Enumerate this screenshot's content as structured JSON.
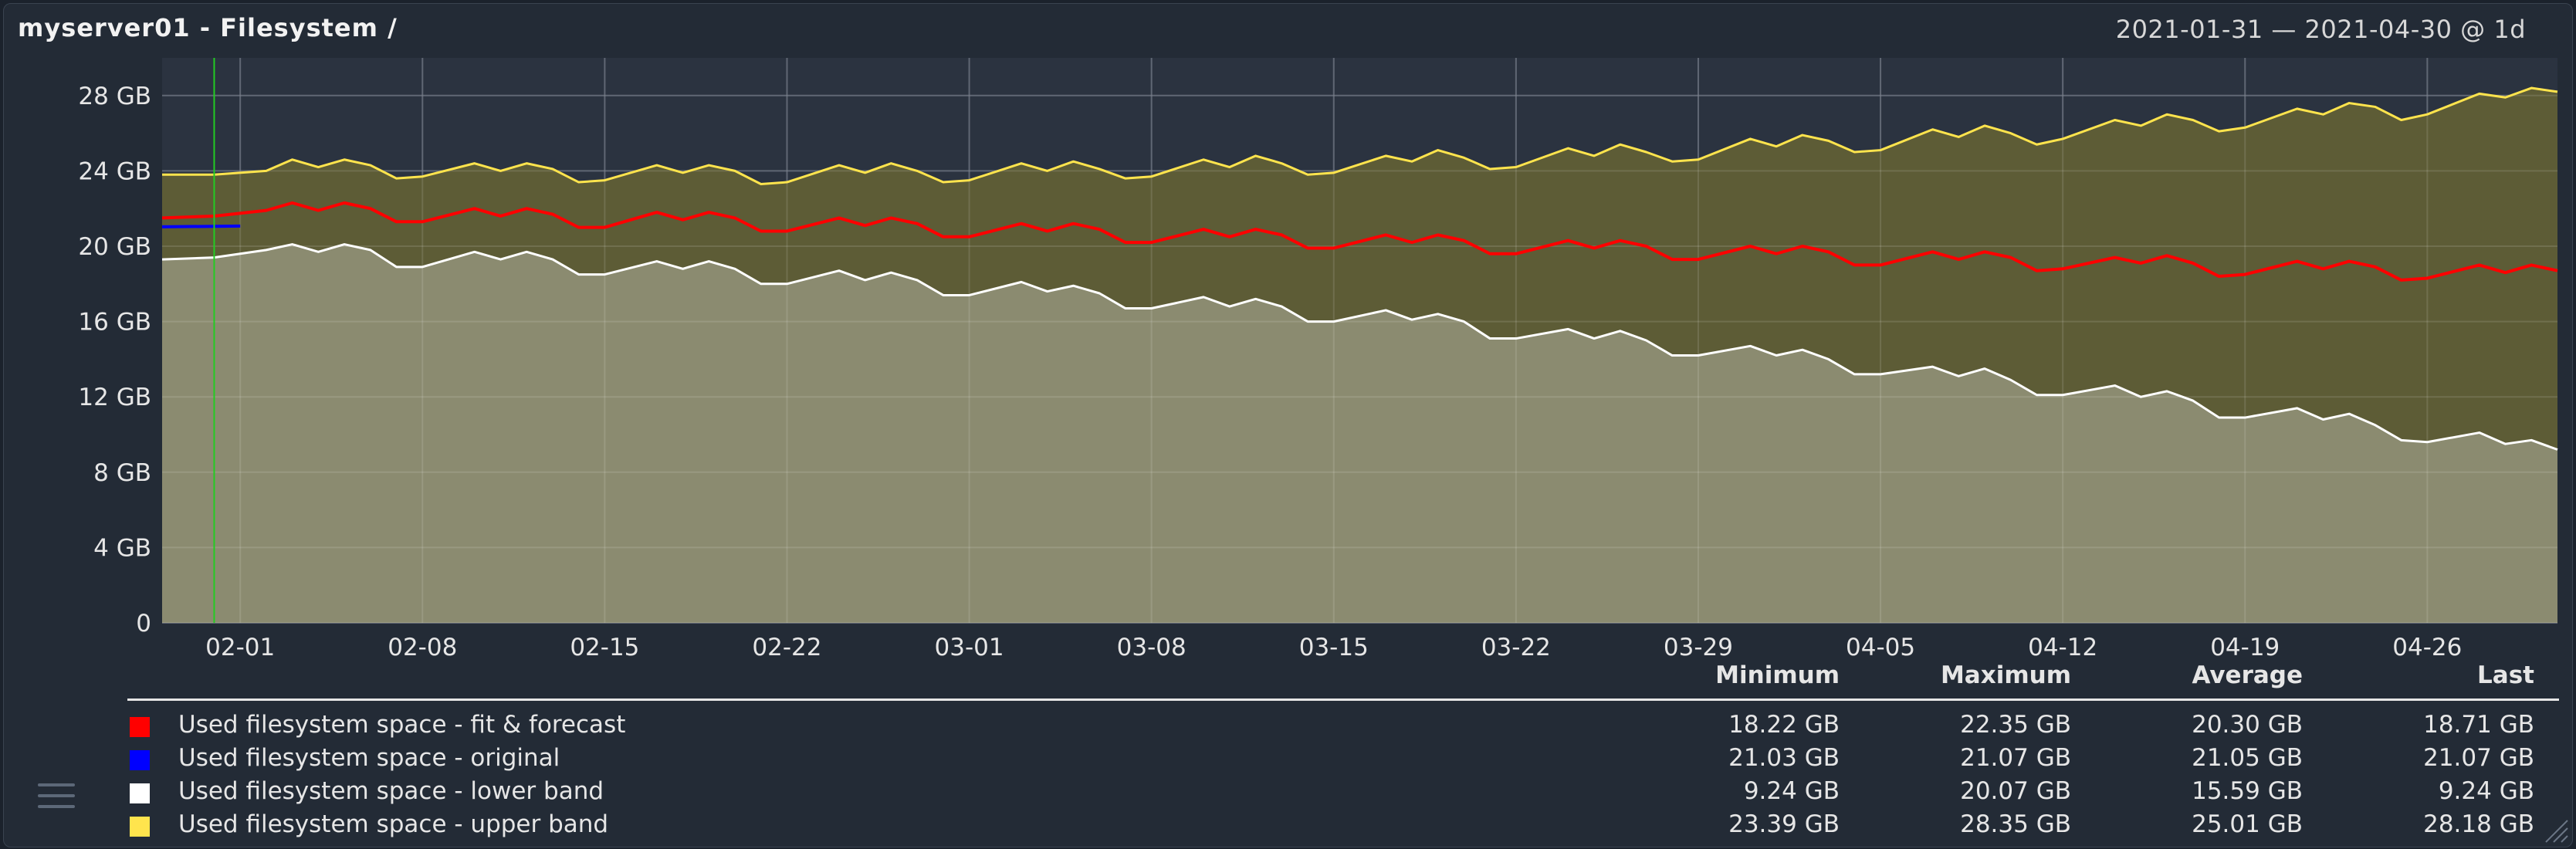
{
  "window": {
    "title": "myserver01 - Filesystem /",
    "time_range": "2021-01-31 — 2021-04-30 @ 1d"
  },
  "legend": {
    "headers": [
      "Minimum",
      "Maximum",
      "Average",
      "Last"
    ],
    "rows": [
      {
        "name": "Used filesystem space - fit & forecast",
        "color": "#ff0000",
        "min": "18.22 GB",
        "max": "22.35 GB",
        "avg": "20.30 GB",
        "last": "18.71 GB"
      },
      {
        "name": "Used filesystem space - original",
        "color": "#0000ff",
        "min": "21.03 GB",
        "max": "21.07 GB",
        "avg": "21.05 GB",
        "last": "21.07 GB"
      },
      {
        "name": "Used filesystem space - lower band",
        "color": "#ffffff",
        "min": "9.24 GB",
        "max": "20.07 GB",
        "avg": "15.59 GB",
        "last": "9.24 GB"
      },
      {
        "name": "Used filesystem space - upper band",
        "color": "#ffe44d",
        "min": "23.39 GB",
        "max": "28.35 GB",
        "avg": "25.01 GB",
        "last": "28.18 GB"
      }
    ]
  },
  "chart_data": {
    "type": "line",
    "ylim": [
      0,
      30
    ],
    "y_ticks": [
      0,
      4,
      8,
      12,
      16,
      20,
      24,
      28
    ],
    "y_tick_labels": [
      "0",
      "4 GB",
      "8 GB",
      "12 GB",
      "16 GB",
      "20 GB",
      "24 GB",
      "28 GB"
    ],
    "x_start": "2021-01-29",
    "x_end": "2021-05-01",
    "x_ticks": [
      "2021-02-01",
      "2021-02-08",
      "2021-02-15",
      "2021-02-22",
      "2021-03-01",
      "2021-03-08",
      "2021-03-15",
      "2021-03-22",
      "2021-03-29",
      "2021-04-05",
      "2021-04-12",
      "2021-04-19",
      "2021-04-26"
    ],
    "x_tick_labels": [
      "02-01",
      "02-08",
      "02-15",
      "02-22",
      "03-01",
      "03-08",
      "03-15",
      "03-22",
      "03-29",
      "04-05",
      "04-12",
      "04-19",
      "04-26"
    ],
    "marker_date": "2021-01-31",
    "grid": true,
    "series": [
      {
        "name": "Used filesystem space - upper band",
        "color": "#ffe44d",
        "points": [
          [
            "2021-01-29",
            23.8
          ],
          [
            "2021-01-31",
            23.8
          ],
          [
            "2021-02-02",
            24.0
          ],
          [
            "2021-02-03",
            24.6
          ],
          [
            "2021-02-04",
            24.2
          ],
          [
            "2021-02-05",
            24.6
          ],
          [
            "2021-02-06",
            24.3
          ],
          [
            "2021-02-07",
            23.6
          ],
          [
            "2021-02-08",
            23.7
          ],
          [
            "2021-02-10",
            24.4
          ],
          [
            "2021-02-11",
            24.0
          ],
          [
            "2021-02-12",
            24.4
          ],
          [
            "2021-02-13",
            24.1
          ],
          [
            "2021-02-14",
            23.4
          ],
          [
            "2021-02-15",
            23.5
          ],
          [
            "2021-02-17",
            24.3
          ],
          [
            "2021-02-18",
            23.9
          ],
          [
            "2021-02-19",
            24.3
          ],
          [
            "2021-02-20",
            24.0
          ],
          [
            "2021-02-21",
            23.3
          ],
          [
            "2021-02-22",
            23.4
          ],
          [
            "2021-02-24",
            24.3
          ],
          [
            "2021-02-25",
            23.9
          ],
          [
            "2021-02-26",
            24.4
          ],
          [
            "2021-02-27",
            24.0
          ],
          [
            "2021-02-28",
            23.4
          ],
          [
            "2021-03-01",
            23.5
          ],
          [
            "2021-03-03",
            24.4
          ],
          [
            "2021-03-04",
            24.0
          ],
          [
            "2021-03-05",
            24.5
          ],
          [
            "2021-03-06",
            24.1
          ],
          [
            "2021-03-07",
            23.6
          ],
          [
            "2021-03-08",
            23.7
          ],
          [
            "2021-03-10",
            24.6
          ],
          [
            "2021-03-11",
            24.2
          ],
          [
            "2021-03-12",
            24.8
          ],
          [
            "2021-03-13",
            24.4
          ],
          [
            "2021-03-14",
            23.8
          ],
          [
            "2021-03-15",
            23.9
          ],
          [
            "2021-03-17",
            24.8
          ],
          [
            "2021-03-18",
            24.5
          ],
          [
            "2021-03-19",
            25.1
          ],
          [
            "2021-03-20",
            24.7
          ],
          [
            "2021-03-21",
            24.1
          ],
          [
            "2021-03-22",
            24.2
          ],
          [
            "2021-03-24",
            25.2
          ],
          [
            "2021-03-25",
            24.8
          ],
          [
            "2021-03-26",
            25.4
          ],
          [
            "2021-03-27",
            25.0
          ],
          [
            "2021-03-28",
            24.5
          ],
          [
            "2021-03-29",
            24.6
          ],
          [
            "2021-03-31",
            25.7
          ],
          [
            "2021-04-01",
            25.3
          ],
          [
            "2021-04-02",
            25.9
          ],
          [
            "2021-04-03",
            25.6
          ],
          [
            "2021-04-04",
            25.0
          ],
          [
            "2021-04-05",
            25.1
          ],
          [
            "2021-04-07",
            26.2
          ],
          [
            "2021-04-08",
            25.8
          ],
          [
            "2021-04-09",
            26.4
          ],
          [
            "2021-04-10",
            26.0
          ],
          [
            "2021-04-11",
            25.4
          ],
          [
            "2021-04-12",
            25.7
          ],
          [
            "2021-04-14",
            26.7
          ],
          [
            "2021-04-15",
            26.4
          ],
          [
            "2021-04-16",
            27.0
          ],
          [
            "2021-04-17",
            26.7
          ],
          [
            "2021-04-18",
            26.1
          ],
          [
            "2021-04-19",
            26.3
          ],
          [
            "2021-04-21",
            27.3
          ],
          [
            "2021-04-22",
            27.0
          ],
          [
            "2021-04-23",
            27.6
          ],
          [
            "2021-04-24",
            27.4
          ],
          [
            "2021-04-25",
            26.7
          ],
          [
            "2021-04-26",
            27.0
          ],
          [
            "2021-04-28",
            28.1
          ],
          [
            "2021-04-29",
            27.9
          ],
          [
            "2021-04-30",
            28.4
          ],
          [
            "2021-05-01",
            28.2
          ]
        ]
      },
      {
        "name": "Used filesystem space - fit & forecast",
        "color": "#ff0000",
        "points": [
          [
            "2021-01-29",
            21.5
          ],
          [
            "2021-01-31",
            21.6
          ],
          [
            "2021-02-02",
            21.9
          ],
          [
            "2021-02-03",
            22.3
          ],
          [
            "2021-02-04",
            21.9
          ],
          [
            "2021-02-05",
            22.3
          ],
          [
            "2021-02-06",
            22.0
          ],
          [
            "2021-02-07",
            21.3
          ],
          [
            "2021-02-08",
            21.3
          ],
          [
            "2021-02-10",
            22.0
          ],
          [
            "2021-02-11",
            21.6
          ],
          [
            "2021-02-12",
            22.0
          ],
          [
            "2021-02-13",
            21.7
          ],
          [
            "2021-02-14",
            21.0
          ],
          [
            "2021-02-15",
            21.0
          ],
          [
            "2021-02-17",
            21.8
          ],
          [
            "2021-02-18",
            21.4
          ],
          [
            "2021-02-19",
            21.8
          ],
          [
            "2021-02-20",
            21.5
          ],
          [
            "2021-02-21",
            20.8
          ],
          [
            "2021-02-22",
            20.8
          ],
          [
            "2021-02-24",
            21.5
          ],
          [
            "2021-02-25",
            21.1
          ],
          [
            "2021-02-26",
            21.5
          ],
          [
            "2021-02-27",
            21.2
          ],
          [
            "2021-02-28",
            20.5
          ],
          [
            "2021-03-01",
            20.5
          ],
          [
            "2021-03-03",
            21.2
          ],
          [
            "2021-03-04",
            20.8
          ],
          [
            "2021-03-05",
            21.2
          ],
          [
            "2021-03-06",
            20.9
          ],
          [
            "2021-03-07",
            20.2
          ],
          [
            "2021-03-08",
            20.2
          ],
          [
            "2021-03-10",
            20.9
          ],
          [
            "2021-03-11",
            20.5
          ],
          [
            "2021-03-12",
            20.9
          ],
          [
            "2021-03-13",
            20.6
          ],
          [
            "2021-03-14",
            19.9
          ],
          [
            "2021-03-15",
            19.9
          ],
          [
            "2021-03-17",
            20.6
          ],
          [
            "2021-03-18",
            20.2
          ],
          [
            "2021-03-19",
            20.6
          ],
          [
            "2021-03-20",
            20.3
          ],
          [
            "2021-03-21",
            19.6
          ],
          [
            "2021-03-22",
            19.6
          ],
          [
            "2021-03-24",
            20.3
          ],
          [
            "2021-03-25",
            19.9
          ],
          [
            "2021-03-26",
            20.3
          ],
          [
            "2021-03-27",
            20.0
          ],
          [
            "2021-03-28",
            19.3
          ],
          [
            "2021-03-29",
            19.3
          ],
          [
            "2021-03-31",
            20.0
          ],
          [
            "2021-04-01",
            19.6
          ],
          [
            "2021-04-02",
            20.0
          ],
          [
            "2021-04-03",
            19.7
          ],
          [
            "2021-04-04",
            19.0
          ],
          [
            "2021-04-05",
            19.0
          ],
          [
            "2021-04-07",
            19.7
          ],
          [
            "2021-04-08",
            19.3
          ],
          [
            "2021-04-09",
            19.7
          ],
          [
            "2021-04-10",
            19.4
          ],
          [
            "2021-04-11",
            18.7
          ],
          [
            "2021-04-12",
            18.8
          ],
          [
            "2021-04-14",
            19.4
          ],
          [
            "2021-04-15",
            19.1
          ],
          [
            "2021-04-16",
            19.5
          ],
          [
            "2021-04-17",
            19.1
          ],
          [
            "2021-04-18",
            18.4
          ],
          [
            "2021-04-19",
            18.5
          ],
          [
            "2021-04-21",
            19.2
          ],
          [
            "2021-04-22",
            18.8
          ],
          [
            "2021-04-23",
            19.2
          ],
          [
            "2021-04-24",
            18.9
          ],
          [
            "2021-04-25",
            18.2
          ],
          [
            "2021-04-26",
            18.3
          ],
          [
            "2021-04-28",
            19.0
          ],
          [
            "2021-04-29",
            18.6
          ],
          [
            "2021-04-30",
            19.0
          ],
          [
            "2021-05-01",
            18.7
          ]
        ]
      },
      {
        "name": "Used filesystem space - lower band",
        "color": "#ffffff",
        "points": [
          [
            "2021-01-29",
            19.3
          ],
          [
            "2021-01-31",
            19.4
          ],
          [
            "2021-02-02",
            19.8
          ],
          [
            "2021-02-03",
            20.1
          ],
          [
            "2021-02-04",
            19.7
          ],
          [
            "2021-02-05",
            20.1
          ],
          [
            "2021-02-06",
            19.8
          ],
          [
            "2021-02-07",
            18.9
          ],
          [
            "2021-02-08",
            18.9
          ],
          [
            "2021-02-10",
            19.7
          ],
          [
            "2021-02-11",
            19.3
          ],
          [
            "2021-02-12",
            19.7
          ],
          [
            "2021-02-13",
            19.3
          ],
          [
            "2021-02-14",
            18.5
          ],
          [
            "2021-02-15",
            18.5
          ],
          [
            "2021-02-17",
            19.2
          ],
          [
            "2021-02-18",
            18.8
          ],
          [
            "2021-02-19",
            19.2
          ],
          [
            "2021-02-20",
            18.8
          ],
          [
            "2021-02-21",
            18.0
          ],
          [
            "2021-02-22",
            18.0
          ],
          [
            "2021-02-24",
            18.7
          ],
          [
            "2021-02-25",
            18.2
          ],
          [
            "2021-02-26",
            18.6
          ],
          [
            "2021-02-27",
            18.2
          ],
          [
            "2021-02-28",
            17.4
          ],
          [
            "2021-03-01",
            17.4
          ],
          [
            "2021-03-03",
            18.1
          ],
          [
            "2021-03-04",
            17.6
          ],
          [
            "2021-03-05",
            17.9
          ],
          [
            "2021-03-06",
            17.5
          ],
          [
            "2021-03-07",
            16.7
          ],
          [
            "2021-03-08",
            16.7
          ],
          [
            "2021-03-10",
            17.3
          ],
          [
            "2021-03-11",
            16.8
          ],
          [
            "2021-03-12",
            17.2
          ],
          [
            "2021-03-13",
            16.8
          ],
          [
            "2021-03-14",
            16.0
          ],
          [
            "2021-03-15",
            16.0
          ],
          [
            "2021-03-17",
            16.6
          ],
          [
            "2021-03-18",
            16.1
          ],
          [
            "2021-03-19",
            16.4
          ],
          [
            "2021-03-20",
            16.0
          ],
          [
            "2021-03-21",
            15.1
          ],
          [
            "2021-03-22",
            15.1
          ],
          [
            "2021-03-24",
            15.6
          ],
          [
            "2021-03-25",
            15.1
          ],
          [
            "2021-03-26",
            15.5
          ],
          [
            "2021-03-27",
            15.0
          ],
          [
            "2021-03-28",
            14.2
          ],
          [
            "2021-03-29",
            14.2
          ],
          [
            "2021-03-31",
            14.7
          ],
          [
            "2021-04-01",
            14.2
          ],
          [
            "2021-04-02",
            14.5
          ],
          [
            "2021-04-03",
            14.0
          ],
          [
            "2021-04-04",
            13.2
          ],
          [
            "2021-04-05",
            13.2
          ],
          [
            "2021-04-07",
            13.6
          ],
          [
            "2021-04-08",
            13.1
          ],
          [
            "2021-04-09",
            13.5
          ],
          [
            "2021-04-10",
            12.9
          ],
          [
            "2021-04-11",
            12.1
          ],
          [
            "2021-04-12",
            12.1
          ],
          [
            "2021-04-14",
            12.6
          ],
          [
            "2021-04-15",
            12.0
          ],
          [
            "2021-04-16",
            12.3
          ],
          [
            "2021-04-17",
            11.8
          ],
          [
            "2021-04-18",
            10.9
          ],
          [
            "2021-04-19",
            10.9
          ],
          [
            "2021-04-21",
            11.4
          ],
          [
            "2021-04-22",
            10.8
          ],
          [
            "2021-04-23",
            11.1
          ],
          [
            "2021-04-24",
            10.5
          ],
          [
            "2021-04-25",
            9.7
          ],
          [
            "2021-04-26",
            9.6
          ],
          [
            "2021-04-28",
            10.1
          ],
          [
            "2021-04-29",
            9.5
          ],
          [
            "2021-04-30",
            9.7
          ],
          [
            "2021-05-01",
            9.2
          ]
        ]
      },
      {
        "name": "Used filesystem space - original",
        "color": "#0000ff",
        "points": [
          [
            "2021-01-29",
            21.03
          ],
          [
            "2021-02-01",
            21.07
          ]
        ]
      }
    ]
  }
}
